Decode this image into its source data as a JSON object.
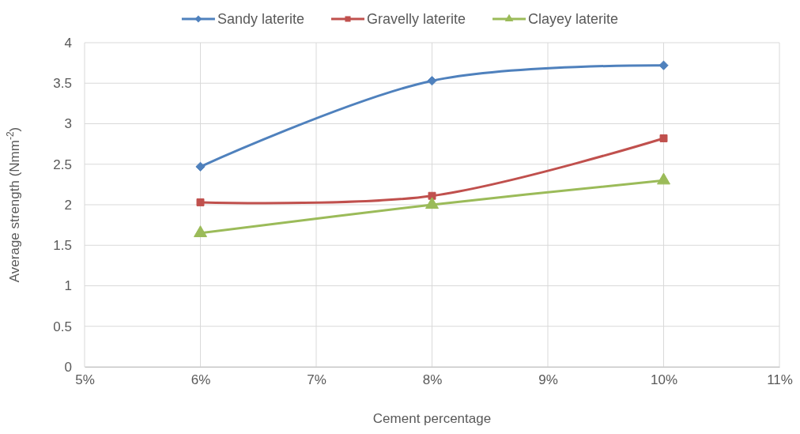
{
  "chart_data": {
    "type": "line",
    "xlabel": "Cement percentage",
    "ylabel": "Average strength (Nmm$^{-2}$)",
    "x": [
      6,
      8,
      10
    ],
    "series": [
      {
        "name": "Sandy laterite",
        "color": "#4f81bd",
        "marker": "diamond",
        "values": [
          2.47,
          3.53,
          3.72
        ]
      },
      {
        "name": "Gravelly laterite",
        "color": "#c0504d",
        "marker": "square",
        "values": [
          2.03,
          2.11,
          2.82
        ]
      },
      {
        "name": "Clayey laterite",
        "color": "#9bbb59",
        "marker": "triangle",
        "values": [
          1.65,
          2.0,
          2.3
        ]
      }
    ],
    "xlim": [
      5,
      11
    ],
    "xticks": [
      {
        "value": 5,
        "label": "5%"
      },
      {
        "value": 6,
        "label": "6%"
      },
      {
        "value": 7,
        "label": "7%"
      },
      {
        "value": 8,
        "label": "8%"
      },
      {
        "value": 9,
        "label": "9%"
      },
      {
        "value": 10,
        "label": "10%"
      },
      {
        "value": 11,
        "label": "11%"
      }
    ],
    "ylim": [
      0,
      4
    ],
    "yticks": [
      0,
      0.5,
      1,
      1.5,
      2,
      2.5,
      3,
      3.5,
      4
    ],
    "grid": true,
    "legend": "top"
  }
}
